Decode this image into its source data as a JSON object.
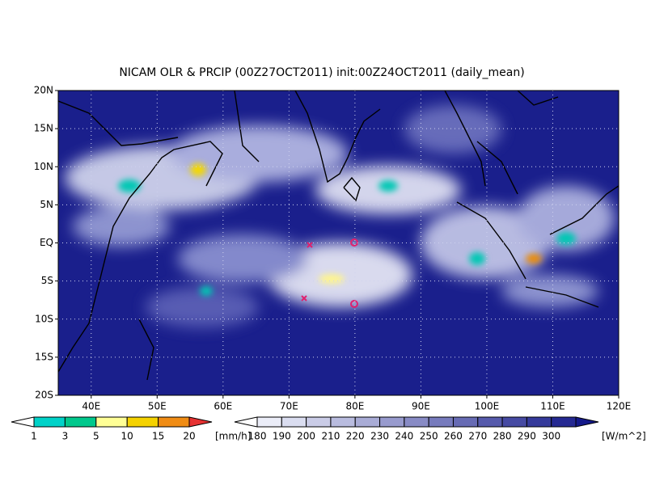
{
  "title": "NICAM OLR & PRCIP (00Z27OCT2011) init:00Z24OCT2011 (daily_mean)",
  "lat_labels": [
    "20N",
    "15N",
    "10N",
    "5N",
    "EQ",
    "5S",
    "10S",
    "15S",
    "20S"
  ],
  "lon_labels": [
    "40E",
    "50E",
    "60E",
    "70E",
    "80E",
    "90E",
    "100E",
    "110E",
    "120E"
  ],
  "precip_colorbar": {
    "labels": [
      "1",
      "3",
      "5",
      "10",
      "15",
      "20"
    ],
    "unit": "[mm/h]"
  },
  "olr_colorbar": {
    "labels": [
      "180",
      "190",
      "200",
      "210",
      "220",
      "230",
      "240",
      "250",
      "260",
      "270",
      "280",
      "290",
      "300"
    ],
    "unit": "[W/m^2]"
  }
}
